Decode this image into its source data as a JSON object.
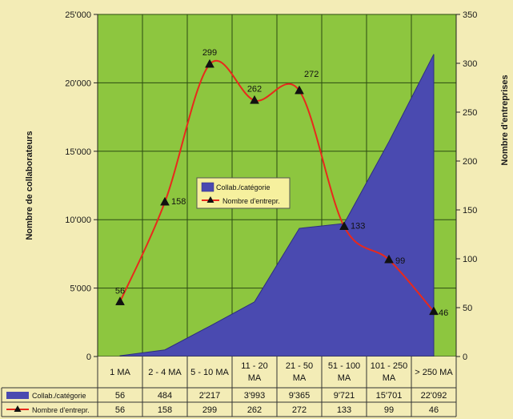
{
  "chart_data": {
    "type": "area",
    "categories": [
      "1 MA",
      "2 - 4 MA",
      "5 - 10 MA",
      "11 - 20 MA",
      "21 - 50 MA",
      "51 - 100 MA",
      "101 - 250 MA",
      "> 250 MA"
    ],
    "series": [
      {
        "name": "Collab./catégorie",
        "type": "area",
        "axis": "left",
        "color": "#4a4ab0",
        "values": [
          56,
          484,
          2217,
          3993,
          9365,
          9721,
          15701,
          22092
        ],
        "value_labels": [
          "56",
          "484",
          "2'217",
          "3'993",
          "9'365",
          "9'721",
          "15'701",
          "22'092"
        ]
      },
      {
        "name": "Nombre d'entrepr.",
        "type": "line",
        "axis": "right",
        "color": "#e8291c",
        "values": [
          56,
          158,
          299,
          262,
          272,
          133,
          99,
          46
        ],
        "value_labels": [
          "56",
          "158",
          "299",
          "262",
          "272",
          "133",
          "99",
          "46"
        ]
      }
    ],
    "ylabel": "Nombre de collaborateurs",
    "ylabel_right": "Nombre d'entreprises",
    "ylim": [
      0,
      25000
    ],
    "ylim_right": [
      0,
      350
    ],
    "yticks": [
      0,
      5000,
      10000,
      15000,
      20000,
      25000
    ],
    "ytick_labels": [
      "0",
      "5'000",
      "10'000",
      "15'000",
      "20'000",
      "25'000"
    ],
    "yticks_right": [
      0,
      50,
      100,
      150,
      200,
      250,
      300,
      350
    ],
    "ytick_labels_right": [
      "0",
      "50",
      "100",
      "150",
      "200",
      "250",
      "300",
      "350"
    ],
    "grid": true,
    "legend": "center",
    "data_table": true,
    "plot_background": "#8dc63f",
    "page_background": "#f3ecb6"
  }
}
